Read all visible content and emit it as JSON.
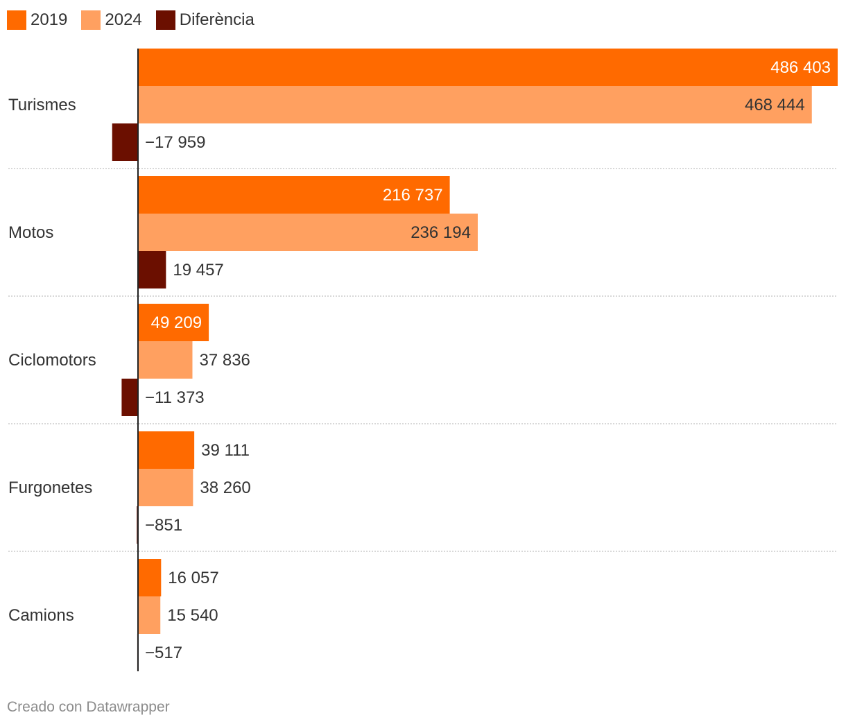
{
  "legend": {
    "items": [
      {
        "label": "2019",
        "color": "#ff6a00"
      },
      {
        "label": "2024",
        "color": "#ffa060"
      },
      {
        "label": "Diferència",
        "color": "#6b0f00"
      }
    ]
  },
  "chart_data": {
    "type": "bar",
    "orientation": "horizontal",
    "grouped": true,
    "categories": [
      "Turismes",
      "Motos",
      "Ciclomotors",
      "Furgonetes",
      "Camions"
    ],
    "series": [
      {
        "name": "2019",
        "color": "#ff6a00",
        "values": [
          486403,
          216737,
          49209,
          39111,
          16057
        ]
      },
      {
        "name": "2024",
        "color": "#ffa060",
        "values": [
          468444,
          236194,
          37836,
          38260,
          15540
        ]
      },
      {
        "name": "Diferència",
        "color": "#6b0f00",
        "values": [
          -17959,
          19457,
          -11373,
          -851,
          -517
        ]
      }
    ],
    "value_labels": [
      [
        "486 403",
        "216 737",
        "49 209",
        "39 111",
        "16 057"
      ],
      [
        "468 444",
        "236 194",
        "37 836",
        "38 260",
        "15 540"
      ],
      [
        "−17 959",
        "19 457",
        "−11 373",
        "−851",
        "−517"
      ]
    ],
    "xlim": [
      -18500,
      486403
    ],
    "grid": false,
    "legend_position": "top-left",
    "title": "",
    "xlabel": "",
    "ylabel": ""
  },
  "footer": {
    "credit": "Creado con Datawrapper"
  }
}
